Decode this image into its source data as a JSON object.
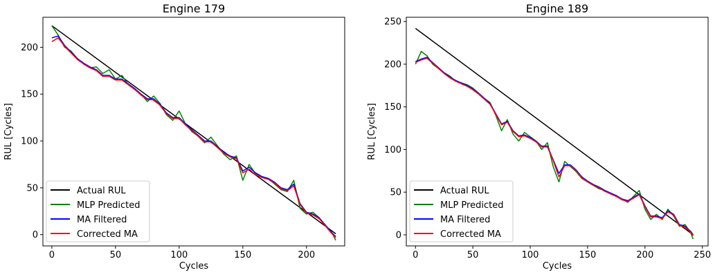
{
  "chart_data": [
    {
      "type": "line",
      "title": "Engine 179",
      "xlabel": "Cycles",
      "ylabel": "RUL [Cycles]",
      "xlim": [
        -7,
        230
      ],
      "ylim": [
        -12,
        232
      ],
      "xticks": [
        0,
        50,
        100,
        150,
        200
      ],
      "yticks": [
        0,
        50,
        100,
        150,
        200
      ],
      "grid": false,
      "legend_position": "lower-left",
      "series": [
        {
          "name": "Actual RUL",
          "color": "#000000",
          "x": [
            0,
            223
          ],
          "y": [
            223,
            1
          ]
        },
        {
          "name": "MLP Predicted",
          "color": "#008000",
          "x": [
            0,
            5,
            10,
            15,
            20,
            25,
            30,
            35,
            40,
            45,
            50,
            55,
            60,
            65,
            70,
            75,
            80,
            85,
            90,
            95,
            100,
            105,
            110,
            115,
            120,
            125,
            130,
            135,
            140,
            145,
            150,
            155,
            160,
            165,
            170,
            175,
            180,
            185,
            190,
            195,
            200,
            205,
            210,
            215,
            220,
            223
          ],
          "y": [
            223,
            213,
            200,
            196,
            188,
            182,
            178,
            179,
            172,
            176,
            166,
            170,
            160,
            155,
            150,
            142,
            148,
            140,
            128,
            122,
            132,
            118,
            110,
            105,
            98,
            104,
            95,
            86,
            80,
            84,
            58,
            75,
            65,
            62,
            60,
            54,
            48,
            46,
            58,
            28,
            22,
            24,
            18,
            10,
            2,
            -6
          ]
        },
        {
          "name": "MA Filtered",
          "color": "#0000ff",
          "x": [
            0,
            5,
            10,
            15,
            20,
            25,
            30,
            35,
            40,
            45,
            50,
            55,
            60,
            65,
            70,
            75,
            80,
            85,
            90,
            95,
            100,
            105,
            110,
            115,
            120,
            125,
            130,
            135,
            140,
            145,
            150,
            155,
            160,
            165,
            170,
            175,
            180,
            185,
            190,
            195,
            200,
            205,
            210,
            215,
            220,
            223
          ],
          "y": [
            210,
            212,
            202,
            195,
            188,
            183,
            179,
            176,
            170,
            170,
            166,
            166,
            161,
            156,
            150,
            145,
            145,
            139,
            130,
            125,
            125,
            118,
            112,
            106,
            100,
            100,
            94,
            88,
            84,
            82,
            68,
            72,
            66,
            62,
            60,
            56,
            50,
            48,
            54,
            33,
            24,
            22,
            18,
            10,
            2,
            -2
          ]
        },
        {
          "name": "Corrected MA",
          "color": "#ff0000",
          "x": [
            0,
            5,
            10,
            15,
            20,
            25,
            30,
            35,
            40,
            45,
            50,
            55,
            60,
            65,
            70,
            75,
            80,
            85,
            90,
            95,
            100,
            105,
            110,
            115,
            120,
            125,
            130,
            135,
            140,
            145,
            150,
            155,
            160,
            165,
            170,
            175,
            180,
            185,
            190,
            195,
            200,
            205,
            210,
            215,
            220,
            223
          ],
          "y": [
            206,
            210,
            201,
            194,
            187,
            182,
            178,
            175,
            169,
            169,
            165,
            165,
            160,
            155,
            149,
            144,
            144,
            138,
            129,
            124,
            124,
            117,
            111,
            105,
            99,
            99,
            93,
            87,
            83,
            81,
            66,
            70,
            64,
            61,
            59,
            55,
            49,
            47,
            52,
            32,
            23,
            21,
            17,
            9,
            1,
            -3
          ]
        }
      ]
    },
    {
      "type": "line",
      "title": "Engine 189",
      "xlabel": "Cycles",
      "ylabel": "RUL [Cycles]",
      "xlim": [
        -8,
        255
      ],
      "ylim": [
        -13,
        255
      ],
      "xticks": [
        0,
        50,
        100,
        150,
        200,
        250
      ],
      "yticks": [
        0,
        50,
        100,
        150,
        200,
        250
      ],
      "grid": false,
      "legend_position": "lower-left",
      "series": [
        {
          "name": "Actual RUL",
          "color": "#000000",
          "x": [
            0,
            242
          ],
          "y": [
            242,
            0
          ]
        },
        {
          "name": "MLP Predicted",
          "color": "#008000",
          "x": [
            0,
            5,
            10,
            15,
            20,
            25,
            30,
            35,
            40,
            45,
            50,
            55,
            60,
            65,
            70,
            75,
            80,
            85,
            90,
            95,
            100,
            105,
            110,
            115,
            120,
            125,
            130,
            135,
            140,
            145,
            150,
            155,
            160,
            165,
            170,
            175,
            180,
            185,
            190,
            195,
            200,
            205,
            210,
            215,
            220,
            225,
            230,
            235,
            240,
            242
          ],
          "y": [
            200,
            215,
            210,
            200,
            195,
            190,
            186,
            180,
            178,
            176,
            172,
            166,
            160,
            155,
            140,
            122,
            135,
            118,
            110,
            120,
            115,
            110,
            100,
            108,
            80,
            62,
            86,
            80,
            74,
            66,
            62,
            58,
            54,
            52,
            48,
            45,
            42,
            38,
            45,
            52,
            30,
            18,
            24,
            18,
            30,
            22,
            10,
            12,
            2,
            -5
          ]
        },
        {
          "name": "MA Filtered",
          "color": "#0000ff",
          "x": [
            0,
            5,
            10,
            15,
            20,
            25,
            30,
            35,
            40,
            45,
            50,
            55,
            60,
            65,
            70,
            75,
            80,
            85,
            90,
            95,
            100,
            105,
            110,
            115,
            120,
            125,
            130,
            135,
            140,
            145,
            150,
            155,
            160,
            165,
            170,
            175,
            180,
            185,
            190,
            195,
            200,
            205,
            210,
            215,
            220,
            225,
            230,
            235,
            240,
            242
          ],
          "y": [
            203,
            206,
            208,
            202,
            196,
            190,
            185,
            181,
            178,
            175,
            171,
            166,
            160,
            154,
            142,
            130,
            133,
            122,
            116,
            117,
            114,
            110,
            104,
            104,
            88,
            72,
            82,
            82,
            76,
            68,
            63,
            59,
            56,
            52,
            49,
            46,
            42,
            40,
            44,
            48,
            34,
            22,
            22,
            20,
            28,
            24,
            12,
            10,
            4,
            0
          ]
        },
        {
          "name": "Corrected MA",
          "color": "#ff0000",
          "x": [
            0,
            5,
            10,
            15,
            20,
            25,
            30,
            35,
            40,
            45,
            50,
            55,
            60,
            65,
            70,
            75,
            80,
            85,
            90,
            95,
            100,
            105,
            110,
            115,
            120,
            125,
            130,
            135,
            140,
            145,
            150,
            155,
            160,
            165,
            170,
            175,
            180,
            185,
            190,
            195,
            200,
            205,
            210,
            215,
            220,
            225,
            230,
            235,
            240,
            242
          ],
          "y": [
            202,
            205,
            207,
            201,
            195,
            189,
            184,
            180,
            177,
            174,
            170,
            165,
            159,
            153,
            141,
            129,
            132,
            121,
            115,
            116,
            113,
            109,
            103,
            103,
            87,
            68,
            81,
            81,
            75,
            67,
            62,
            58,
            55,
            51,
            48,
            45,
            41,
            39,
            43,
            47,
            33,
            21,
            21,
            19,
            27,
            23,
            11,
            9,
            3,
            -1
          ]
        }
      ]
    }
  ]
}
